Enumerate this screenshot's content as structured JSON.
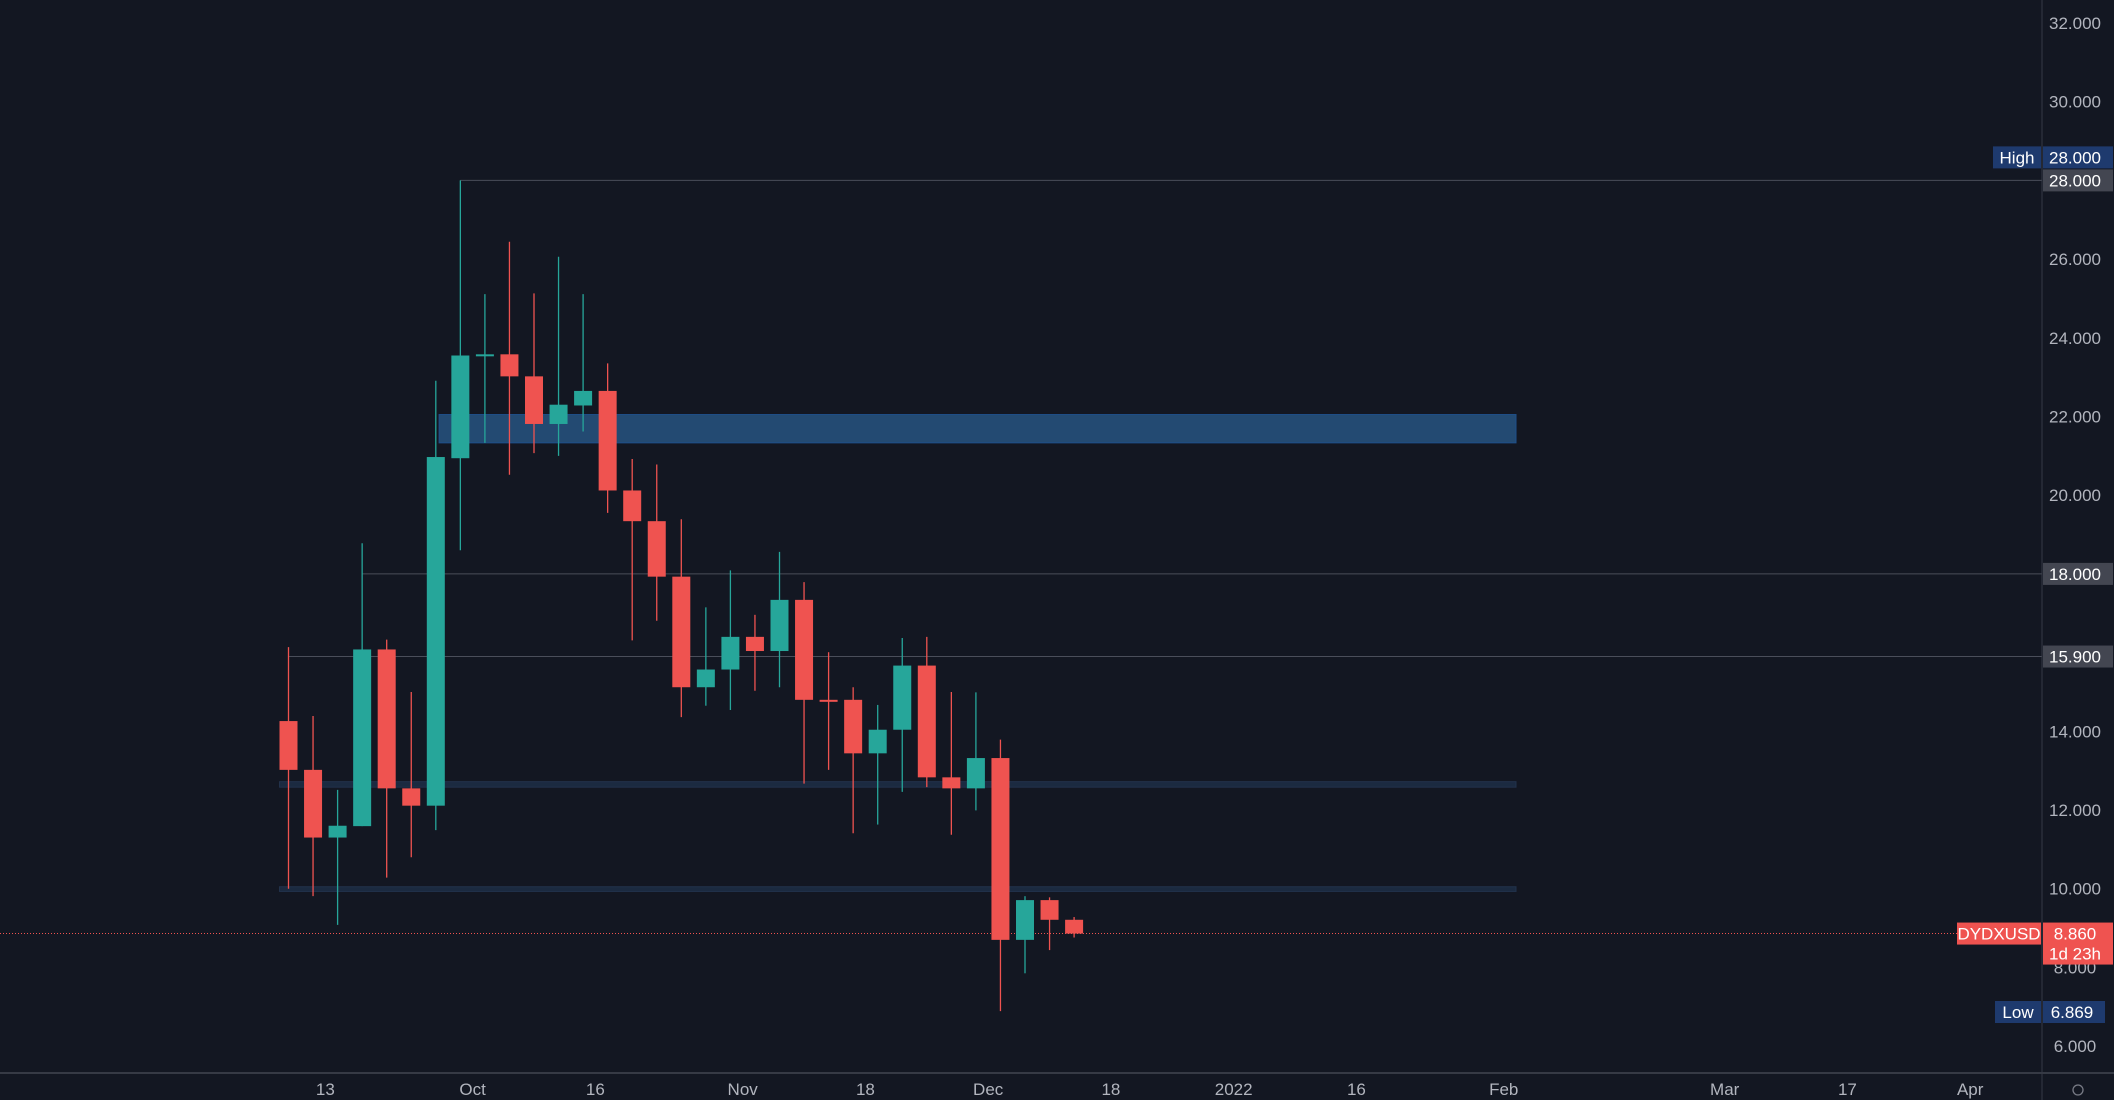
{
  "chart_data": {
    "type": "candlestick",
    "symbol": "DYDXUSD",
    "colors": {
      "up": "#26a69a",
      "down": "#ef5350",
      "background": "#131722",
      "zone": "#234a72",
      "zone_dark": "#1b2a40",
      "high_low_badge": "#1e3a6e",
      "level_badge": "#434651"
    },
    "ylim": [
      6,
      32
    ],
    "y_ticks": [
      "32.000",
      "30.000",
      "26.000",
      "24.000",
      "22.000",
      "20.000",
      "14.000",
      "12.000",
      "10.000",
      "8.000",
      "6.000"
    ],
    "y_tick_values": [
      32,
      30,
      26,
      24,
      22,
      20,
      14,
      12,
      10,
      8,
      6
    ],
    "x_ticks": [
      {
        "label": "13",
        "index": 1.5
      },
      {
        "label": "Oct",
        "index": 7.5
      },
      {
        "label": "16",
        "index": 12.5
      },
      {
        "label": "Nov",
        "index": 18.5
      },
      {
        "label": "18",
        "index": 23.5
      },
      {
        "label": "Dec",
        "index": 28.5
      },
      {
        "label": "18",
        "index": 33.5
      },
      {
        "label": "2022",
        "index": 38.5
      },
      {
        "label": "16",
        "index": 43.5
      },
      {
        "label": "Feb",
        "index": 49.5
      },
      {
        "label": "Mar",
        "index": 58.5
      },
      {
        "label": "17",
        "index": 63.5
      },
      {
        "label": "Apr",
        "index": 68.5
      }
    ],
    "candles": [
      [
        14.26,
        16.14,
        10.0,
        13.02
      ],
      [
        13.02,
        14.39,
        9.81,
        11.3
      ],
      [
        11.3,
        12.51,
        9.08,
        11.6
      ],
      [
        11.59,
        18.78,
        11.59,
        16.08
      ],
      [
        16.08,
        16.33,
        10.28,
        12.55
      ],
      [
        12.55,
        15.0,
        10.8,
        12.11
      ],
      [
        12.11,
        22.91,
        11.49,
        20.97
      ],
      [
        20.94,
        28.0,
        18.6,
        23.55
      ],
      [
        23.56,
        25.11,
        21.33,
        23.58
      ],
      [
        23.58,
        26.44,
        20.52,
        23.02
      ],
      [
        23.02,
        25.13,
        21.07,
        21.81
      ],
      [
        21.81,
        26.06,
        21.0,
        22.3
      ],
      [
        22.28,
        25.11,
        21.62,
        22.65
      ],
      [
        22.65,
        23.35,
        19.55,
        20.12
      ],
      [
        20.12,
        20.92,
        16.31,
        19.34
      ],
      [
        19.34,
        20.78,
        16.81,
        17.93
      ],
      [
        17.93,
        19.39,
        14.36,
        15.12
      ],
      [
        15.12,
        17.15,
        14.65,
        15.57
      ],
      [
        15.57,
        18.09,
        14.54,
        16.4
      ],
      [
        16.4,
        16.96,
        15.03,
        16.04
      ],
      [
        16.04,
        18.56,
        15.12,
        17.34
      ],
      [
        17.34,
        17.79,
        12.67,
        14.8
      ],
      [
        14.8,
        16.01,
        13.02,
        14.78
      ],
      [
        14.8,
        15.12,
        11.41,
        13.44
      ],
      [
        13.44,
        14.67,
        11.63,
        14.04
      ],
      [
        14.04,
        16.37,
        12.46,
        15.67
      ],
      [
        15.67,
        16.4,
        12.58,
        12.83
      ],
      [
        12.83,
        15.0,
        11.37,
        12.55
      ],
      [
        12.55,
        14.99,
        11.99,
        13.32
      ],
      [
        13.32,
        13.79,
        6.89,
        8.7
      ],
      [
        8.7,
        9.81,
        7.85,
        9.71
      ],
      [
        9.71,
        9.78,
        8.44,
        9.21
      ],
      [
        9.21,
        9.28,
        8.76,
        8.86
      ]
    ],
    "levels": [
      {
        "price": 28.0,
        "label": "28.000",
        "from_index": 7
      },
      {
        "price": 18.0,
        "label": "18.000",
        "from_index": 3
      },
      {
        "price": 15.9,
        "label": "15.900",
        "from_index": 0
      }
    ],
    "zones": [
      {
        "top": 22.05,
        "bottom": 21.33,
        "from_index": 6.5,
        "to_index": 60,
        "style": "zone"
      },
      {
        "top": 12.72,
        "bottom": 12.58,
        "from_index": 0,
        "to_index": 60,
        "style": "zone_dark"
      },
      {
        "top": 10.05,
        "bottom": 9.93,
        "from_index": 0,
        "to_index": 60,
        "style": "zone_dark"
      }
    ],
    "high": {
      "label": "High",
      "value": "28.000",
      "price": 28.0
    },
    "low": {
      "label": "Low",
      "value": "6.869",
      "price": 6.869
    },
    "last": {
      "symbol": "DYDXUSD",
      "value": "8.860",
      "countdown": "1d 23h",
      "price": 8.86
    }
  }
}
